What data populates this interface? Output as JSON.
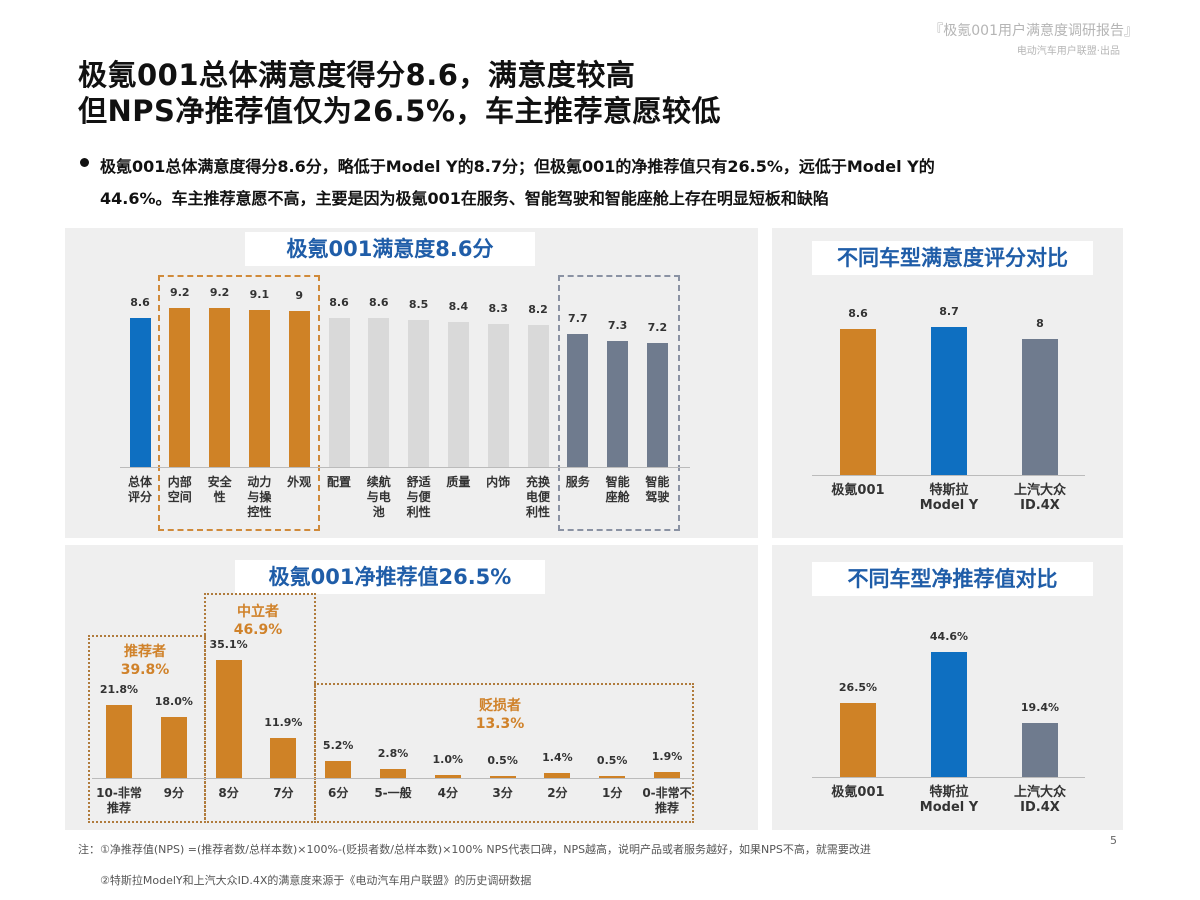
{
  "header": {
    "report_title": "『极氪001用户满意度调研报告』",
    "publisher": "电动汽车用户联盟·出品"
  },
  "title": {
    "line1": "极氪001总体满意度得分8.6，满意度较高",
    "line2": "但NPS净推荐值仅为26.5%，车主推荐意愿较低"
  },
  "bullet": {
    "line1": "极氪001总体满意度得分8.6分，略低于Model Y的8.7分；但极氪001的净推荐值只有26.5%，远低于Model Y的",
    "line2": "44.6%。车主推荐意愿不高，主要是因为极氪001在服务、智能驾驶和智能座舱上存在明显短板和缺陷"
  },
  "colors": {
    "blue": "#0e6fc1",
    "orange": "#cf8226",
    "light_grey": "#d9d9d9",
    "slate": "#6f7b8e",
    "title_blue": "#1f5da8"
  },
  "chart_data": [
    {
      "type": "bar",
      "title": "极氪001满意度8.6分",
      "categories": [
        "总体\n评分",
        "内部\n空间",
        "安全\n性",
        "动力\n与操\n控性",
        "外观",
        "配置",
        "续航\n与电\n池",
        "舒适\n与便\n利性",
        "质量",
        "内饰",
        "充换\n电便\n利性",
        "服务",
        "智能\n座舱",
        "智能\n驾驶"
      ],
      "values": [
        8.6,
        9.2,
        9.2,
        9.1,
        9,
        8.6,
        8.6,
        8.5,
        8.4,
        8.3,
        8.2,
        7.7,
        7.3,
        7.2
      ],
      "labels": [
        "8.6",
        "9.2",
        "9.2",
        "9.1",
        "9",
        "8.6",
        "8.6",
        "8.5",
        "8.4",
        "8.3",
        "8.2",
        "7.7",
        "7.3",
        "7.2"
      ],
      "bar_colors": [
        "#0e6fc1",
        "#cf8226",
        "#cf8226",
        "#cf8226",
        "#cf8226",
        "#d9d9d9",
        "#d9d9d9",
        "#d9d9d9",
        "#d9d9d9",
        "#d9d9d9",
        "#d9d9d9",
        "#6f7b8e",
        "#6f7b8e",
        "#6f7b8e"
      ],
      "ylim": [
        0,
        9.2
      ]
    },
    {
      "type": "bar",
      "title": "极氪001净推荐值26.5%",
      "categories": [
        "10-非常\n推荐",
        "9分",
        "8分",
        "7分",
        "6分",
        "5-一般",
        "4分",
        "3分",
        "2分",
        "1分",
        "0-非常不\n推荐"
      ],
      "values": [
        21.8,
        18.0,
        35.1,
        11.9,
        5.2,
        2.8,
        1.0,
        0.5,
        1.4,
        0.5,
        1.9
      ],
      "labels": [
        "21.8%",
        "18.0%",
        "35.1%",
        "11.9%",
        "5.2%",
        "2.8%",
        "1.0%",
        "0.5%",
        "1.4%",
        "0.5%",
        "1.9%"
      ],
      "groups": [
        {
          "name": "推荐者",
          "value": "39.8%"
        },
        {
          "name": "中立者",
          "value": "46.9%"
        },
        {
          "name": "贬损者",
          "value": "13.3%"
        }
      ],
      "ylim": [
        0,
        35.1
      ]
    },
    {
      "type": "bar",
      "title": "不同车型满意度评分对比",
      "categories": [
        "极氪001",
        "特斯拉\nModel Y",
        "上汽大众\nID.4X"
      ],
      "values": [
        8.6,
        8.7,
        8
      ],
      "labels": [
        "8.6",
        "8.7",
        "8"
      ],
      "bar_colors": [
        "#cf8226",
        "#0e6fc1",
        "#6f7b8e"
      ],
      "ylim": [
        0,
        8.7
      ]
    },
    {
      "type": "bar",
      "title": "不同车型净推荐值对比",
      "categories": [
        "极氪001",
        "特斯拉\nModel Y",
        "上汽大众\nID.4X"
      ],
      "values": [
        26.5,
        44.6,
        19.4
      ],
      "labels": [
        "26.5%",
        "44.6%",
        "19.4%"
      ],
      "bar_colors": [
        "#cf8226",
        "#0e6fc1",
        "#6f7b8e"
      ],
      "ylim": [
        0,
        44.6
      ]
    }
  ],
  "notes": {
    "line1": "注：①净推荐值(NPS) =(推荐者数/总样本数)×100%-(贬损者数/总样本数)×100%      NPS代表口碑，NPS越高，说明产品或者服务越好，如果NPS不高，就需要改进",
    "line2": "②特斯拉ModelY和上汽大众ID.4X的满意度来源于《电动汽车用户联盟》的历史调研数据"
  },
  "page_number": "5"
}
